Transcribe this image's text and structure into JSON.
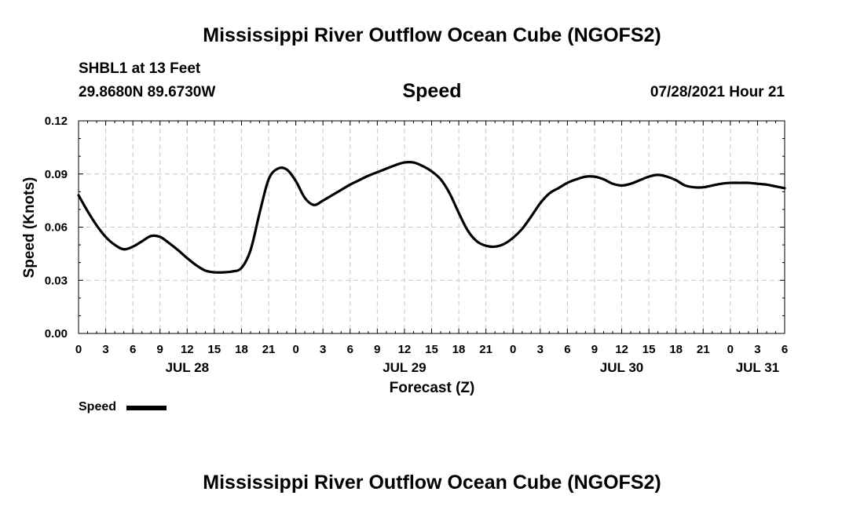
{
  "header": {
    "title": "Mississippi River Outflow Ocean Cube (NGOFS2)",
    "station": "SHBL1 at 13 Feet",
    "coords": "29.8680N  89.6730W",
    "chart_name": "Speed",
    "timestamp": "07/28/2021 Hour 21"
  },
  "footer": {
    "title": "Mississippi River Outflow Ocean Cube (NGOFS2)"
  },
  "legend": {
    "label": "Speed"
  },
  "colors": {
    "line": "#000000",
    "grid": "#c8c8c8",
    "axis": "#000000"
  },
  "chart_data": {
    "type": "line",
    "title": "Speed",
    "xlabel": "Forecast (Z)",
    "ylabel": "Speed (Knots)",
    "ylim": [
      0,
      0.12
    ],
    "y_ticks": [
      "0.00",
      "0.03",
      "0.06",
      "0.09",
      "0.12"
    ],
    "x_unit": "hours since 07/28 00Z",
    "xlim": [
      0,
      78
    ],
    "x_ticks": [
      {
        "h": 0,
        "label": "0"
      },
      {
        "h": 3,
        "label": "3"
      },
      {
        "h": 6,
        "label": "6"
      },
      {
        "h": 9,
        "label": "9"
      },
      {
        "h": 12,
        "label": "12"
      },
      {
        "h": 15,
        "label": "15"
      },
      {
        "h": 18,
        "label": "18"
      },
      {
        "h": 21,
        "label": "21"
      },
      {
        "h": 24,
        "label": "0"
      },
      {
        "h": 27,
        "label": "3"
      },
      {
        "h": 30,
        "label": "6"
      },
      {
        "h": 33,
        "label": "9"
      },
      {
        "h": 36,
        "label": "12"
      },
      {
        "h": 39,
        "label": "15"
      },
      {
        "h": 42,
        "label": "18"
      },
      {
        "h": 45,
        "label": "21"
      },
      {
        "h": 48,
        "label": "0"
      },
      {
        "h": 51,
        "label": "3"
      },
      {
        "h": 54,
        "label": "6"
      },
      {
        "h": 57,
        "label": "9"
      },
      {
        "h": 60,
        "label": "12"
      },
      {
        "h": 63,
        "label": "15"
      },
      {
        "h": 66,
        "label": "18"
      },
      {
        "h": 69,
        "label": "21"
      },
      {
        "h": 72,
        "label": "0"
      },
      {
        "h": 75,
        "label": "3"
      },
      {
        "h": 78,
        "label": "6"
      }
    ],
    "date_labels": [
      {
        "h": 12,
        "label": "JUL 28"
      },
      {
        "h": 36,
        "label": "JUL 29"
      },
      {
        "h": 60,
        "label": "JUL 30"
      },
      {
        "h": 75,
        "label": "JUL 31"
      }
    ],
    "grid": true,
    "series": [
      {
        "name": "Speed",
        "x": [
          0,
          1,
          2,
          3,
          4,
          5,
          6,
          7,
          8,
          9,
          10,
          11,
          12,
          13,
          14,
          15,
          16,
          17,
          18,
          19,
          20,
          21,
          22,
          23,
          24,
          25,
          26,
          27,
          28,
          29,
          30,
          31,
          32,
          33,
          34,
          35,
          36,
          37,
          38,
          39,
          40,
          41,
          42,
          43,
          44,
          45,
          46,
          47,
          48,
          49,
          50,
          51,
          52,
          53,
          54,
          55,
          56,
          57,
          58,
          59,
          60,
          61,
          62,
          63,
          64,
          65,
          66,
          67,
          68,
          69,
          70,
          71,
          72,
          73,
          74,
          75,
          76,
          77,
          78
        ],
        "values": [
          0.078,
          0.069,
          0.061,
          0.0545,
          0.05,
          0.0475,
          0.049,
          0.052,
          0.055,
          0.0545,
          0.051,
          0.047,
          0.0425,
          0.0385,
          0.0355,
          0.0345,
          0.0345,
          0.035,
          0.037,
          0.047,
          0.068,
          0.087,
          0.093,
          0.0925,
          0.086,
          0.0765,
          0.0725,
          0.075,
          0.078,
          0.081,
          0.084,
          0.0865,
          0.089,
          0.091,
          0.093,
          0.095,
          0.0965,
          0.0965,
          0.0945,
          0.0915,
          0.087,
          0.079,
          0.068,
          0.058,
          0.052,
          0.0495,
          0.049,
          0.0505,
          0.054,
          0.059,
          0.066,
          0.0735,
          0.079,
          0.082,
          0.085,
          0.087,
          0.0885,
          0.0885,
          0.087,
          0.0845,
          0.0835,
          0.0845,
          0.0865,
          0.0885,
          0.0895,
          0.0885,
          0.0865,
          0.0835,
          0.0825,
          0.0825,
          0.0835,
          0.0845,
          0.085,
          0.085,
          0.085,
          0.0845,
          0.084,
          0.083,
          0.082
        ]
      }
    ]
  }
}
